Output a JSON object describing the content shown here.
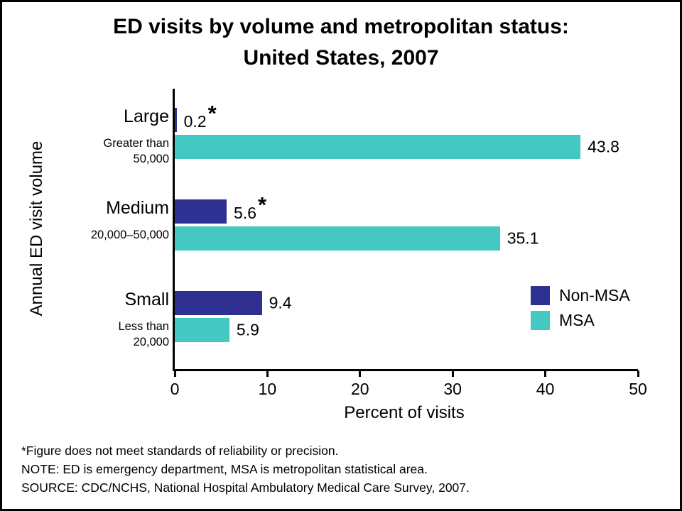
{
  "title": {
    "line1": "ED visits by volume and metropolitan status:",
    "line2": "United States, 2007"
  },
  "chart_data": {
    "type": "bar",
    "orientation": "horizontal",
    "title": "ED visits by volume and metropolitan status: United States, 2007",
    "xlabel": "Percent of visits",
    "ylabel": "Annual ED visit volume",
    "xlim": [
      0,
      50
    ],
    "xticks": [
      0,
      10,
      20,
      30,
      40,
      50
    ],
    "grid": false,
    "legend_position": "inside-right",
    "flag_symbol": "*",
    "legend": [
      {
        "name": "Non-MSA",
        "color": "#2e3192"
      },
      {
        "name": "MSA",
        "color": "#44c8c4"
      }
    ],
    "categories": [
      {
        "label": "Large",
        "sublines": [
          "Greater than",
          "50,000"
        ]
      },
      {
        "label": "Medium",
        "sublines": [
          "20,000–50,000"
        ]
      },
      {
        "label": "Small",
        "sublines": [
          "Less than",
          "20,000"
        ]
      }
    ],
    "series": [
      {
        "name": "Non-MSA",
        "color": "#2e3192",
        "values": [
          0.2,
          5.6,
          9.4
        ],
        "value_labels": [
          "0.2",
          "5.6",
          "9.4"
        ],
        "flags": [
          true,
          true,
          false
        ]
      },
      {
        "name": "MSA",
        "color": "#44c8c4",
        "values": [
          43.8,
          35.1,
          5.9
        ],
        "value_labels": [
          "43.8",
          "35.1",
          "5.9"
        ],
        "flags": [
          false,
          false,
          false
        ]
      }
    ]
  },
  "footnotes": [
    "*Figure does not meet standards of reliability or precision.",
    "NOTE: ED is emergency department, MSA is metropolitan statistical area.",
    "SOURCE: CDC/NCHS, National Hospital Ambulatory Medical Care Survey, 2007."
  ]
}
